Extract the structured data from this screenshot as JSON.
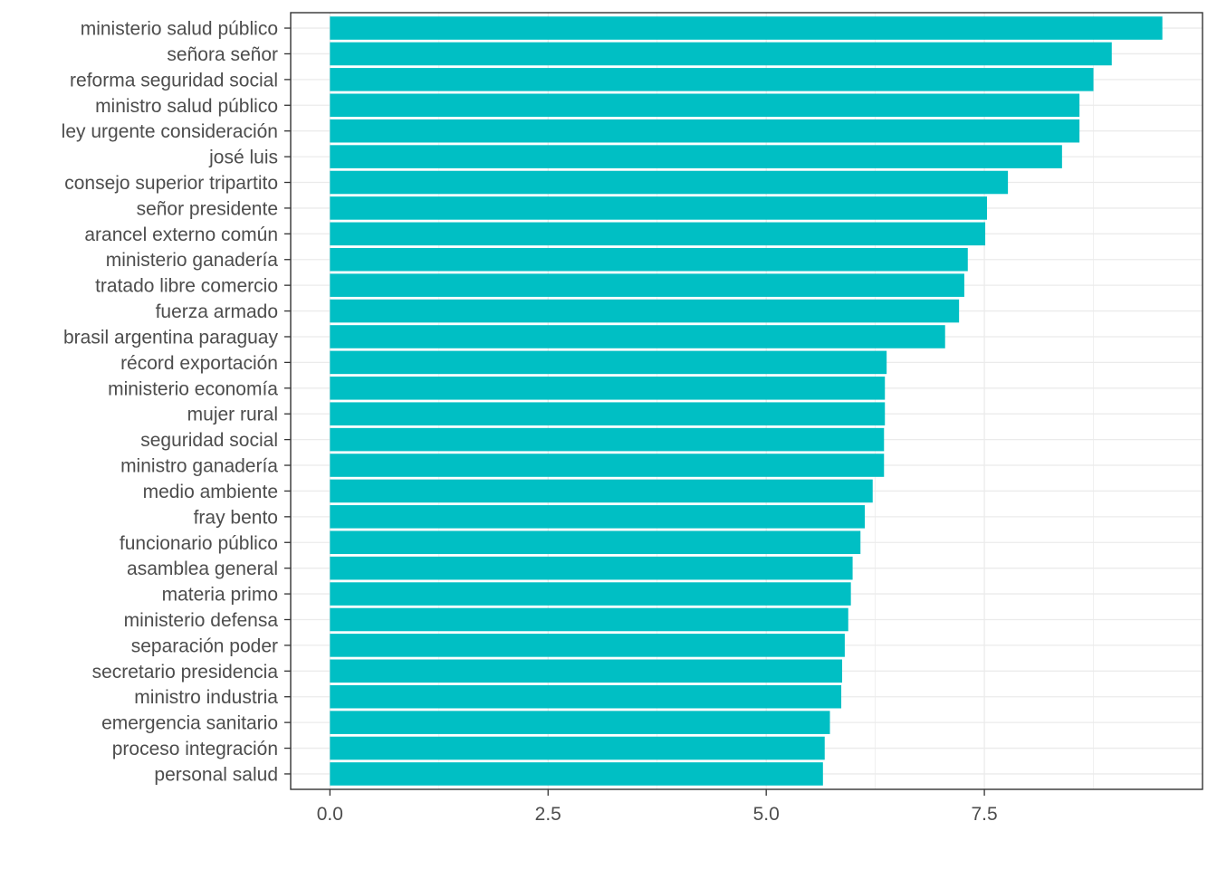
{
  "chart_data": {
    "type": "bar",
    "orientation": "horizontal",
    "title": "",
    "xlabel": "",
    "ylabel": "",
    "xlim": [
      -0.45,
      10.0
    ],
    "xticks": [
      0.0,
      2.5,
      5.0,
      7.5
    ],
    "xtick_labels": [
      "0.0",
      "2.5",
      "5.0",
      "7.5"
    ],
    "grid": true,
    "bar_color": "#00BFC4",
    "categories": [
      "ministerio salud público",
      "señora señor",
      "reforma seguridad social",
      "ministro salud público",
      "ley urgente consideración",
      "josé luis",
      "consejo superior tripartito",
      "señor presidente",
      "arancel externo común",
      "ministerio ganadería",
      "tratado libre comercio",
      "fuerza armado",
      "brasil argentina paraguay",
      "récord exportación",
      "ministerio economía",
      "mujer rural",
      "seguridad social",
      "ministro ganadería",
      "medio ambiente",
      "fray bento",
      "funcionario público",
      "asamblea general",
      "materia primo",
      "ministerio defensa",
      "separación poder",
      "secretario presidencia",
      "ministro industria",
      "emergencia sanitario",
      "proceso integración",
      "personal salud"
    ],
    "values": [
      9.54,
      8.96,
      8.75,
      8.59,
      8.59,
      8.39,
      7.77,
      7.53,
      7.51,
      7.31,
      7.27,
      7.21,
      7.05,
      6.38,
      6.36,
      6.36,
      6.35,
      6.35,
      6.22,
      6.13,
      6.08,
      5.99,
      5.97,
      5.94,
      5.9,
      5.87,
      5.86,
      5.73,
      5.67,
      5.65
    ]
  }
}
